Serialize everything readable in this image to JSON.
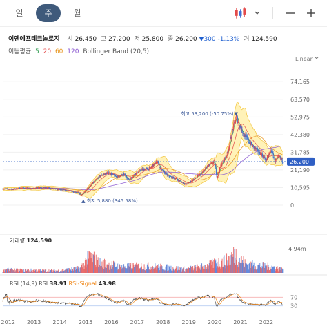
{
  "toolbar": {
    "tabs": [
      {
        "label": "일",
        "active": false
      },
      {
        "label": "주",
        "active": true
      },
      {
        "label": "월",
        "active": false
      }
    ],
    "icons": [
      "candlestick-icon",
      "chevron-down-icon",
      "minus-icon",
      "plus-icon"
    ]
  },
  "header": {
    "stock_name": "이엔에프테크놀로지",
    "open_label": "시",
    "open": "26,450",
    "high_label": "고",
    "high": "27,200",
    "low_label": "저",
    "low": "25,800",
    "close_label": "종",
    "close": "26,200",
    "change": "▼300",
    "change_pct": "-1.13%",
    "volume_label": "거",
    "volume": "124,590"
  },
  "indicators": {
    "ma_label": "이동평균",
    "ma_periods": [
      "5",
      "20",
      "60",
      "120"
    ],
    "bollinger_label": "Bollinger Band (20,5)",
    "scale": "Linear"
  },
  "colors": {
    "up": "#e34a4a",
    "down": "#3d6fd6",
    "ma5": "#2e9c4f",
    "ma20": "#e34a4a",
    "ma60": "#e7941b",
    "ma120": "#8a57d0",
    "band_fill": "#fff2b8",
    "band_line": "#f2c43c",
    "current_price_tag": "#2f5fc4",
    "rsi": "#3a3a3a",
    "rsi_signal": "#f08a1e"
  },
  "chart_data": [
    {
      "type": "candlestick",
      "title": "이엔에프테크놀로지",
      "ylim": [
        0,
        78000
      ],
      "y_ticks": [
        "74,165",
        "63,570",
        "52,975",
        "42,380",
        "31,785",
        "21,190",
        "10,595",
        "0"
      ],
      "y_tick_values": [
        74165,
        63570,
        52975,
        42380,
        31785,
        21190,
        10595,
        0
      ],
      "x_ticks": [
        "2012",
        "2013",
        "2014",
        "2015",
        "2016",
        "2017",
        "2018",
        "2019",
        "2020",
        "2021",
        "2022"
      ],
      "x_range": [
        2011.9,
        2022.75
      ],
      "price_path": [
        [
          2011.9,
          9800
        ],
        [
          2012.3,
          9500
        ],
        [
          2012.6,
          10500
        ],
        [
          2013.0,
          9900
        ],
        [
          2013.3,
          10800
        ],
        [
          2013.7,
          10200
        ],
        [
          2014.1,
          9300
        ],
        [
          2014.5,
          8500
        ],
        [
          2014.8,
          7600
        ],
        [
          2014.95,
          5880
        ],
        [
          2015.15,
          9500
        ],
        [
          2015.4,
          13500
        ],
        [
          2015.7,
          18000
        ],
        [
          2016.0,
          19500
        ],
        [
          2016.3,
          17000
        ],
        [
          2016.6,
          18500
        ],
        [
          2016.8,
          15000
        ],
        [
          2017.0,
          18500
        ],
        [
          2017.3,
          21500
        ],
        [
          2017.6,
          22000
        ],
        [
          2017.9,
          26500
        ],
        [
          2018.0,
          22000
        ],
        [
          2018.3,
          17500
        ],
        [
          2018.6,
          16000
        ],
        [
          2018.8,
          14000
        ],
        [
          2019.0,
          12500
        ],
        [
          2019.3,
          15500
        ],
        [
          2019.6,
          19000
        ],
        [
          2019.8,
          23000
        ],
        [
          2020.0,
          25000
        ],
        [
          2020.1,
          26000
        ],
        [
          2020.2,
          16500
        ],
        [
          2020.35,
          24000
        ],
        [
          2020.6,
          31000
        ],
        [
          2020.8,
          45000
        ],
        [
          2020.95,
          53200
        ],
        [
          2021.1,
          47000
        ],
        [
          2021.3,
          41000
        ],
        [
          2021.6,
          35000
        ],
        [
          2021.9,
          31000
        ],
        [
          2022.1,
          27000
        ],
        [
          2022.3,
          33000
        ],
        [
          2022.45,
          26500
        ],
        [
          2022.6,
          29000
        ],
        [
          2022.75,
          26200
        ]
      ],
      "current_price": 26200,
      "current_price_label": "26,200",
      "annotations": [
        {
          "text": "최고 53,200 (-50.75%)",
          "x": 2020.95,
          "y": 53200,
          "marker": "▼"
        },
        {
          "text": "▲ 최저 5,880 (345.58%)",
          "x": 2014.95,
          "y": 5880
        }
      ],
      "series": [
        "5",
        "20",
        "60",
        "120",
        "Bollinger Band (20,5)"
      ]
    },
    {
      "type": "bar",
      "title": "거래량",
      "last_value": "124,590",
      "y_tick": "4.94m",
      "ylim": [
        0,
        4940000
      ],
      "x_range": [
        2011.9,
        2022.75
      ],
      "level_path": [
        [
          2011.9,
          0.14
        ],
        [
          2013.0,
          0.12
        ],
        [
          2014.0,
          0.1
        ],
        [
          2014.9,
          0.2
        ],
        [
          2015.3,
          0.75
        ],
        [
          2015.6,
          0.45
        ],
        [
          2016.5,
          0.28
        ],
        [
          2017.5,
          0.3
        ],
        [
          2018.0,
          0.26
        ],
        [
          2019.0,
          0.18
        ],
        [
          2019.8,
          0.3
        ],
        [
          2020.2,
          0.45
        ],
        [
          2020.6,
          0.55
        ],
        [
          2020.9,
          0.85
        ],
        [
          2021.3,
          0.4
        ],
        [
          2021.8,
          0.32
        ],
        [
          2022.3,
          0.28
        ],
        [
          2022.75,
          0.15
        ]
      ]
    },
    {
      "type": "line",
      "title": "RSI (14,9)",
      "rsi_label": "RSI",
      "rsi_value": "38.91",
      "signal_label": "RSI-Signal",
      "signal_value": "43.98",
      "ylim": [
        0,
        100
      ],
      "y_ticks": [
        "70",
        "30"
      ],
      "y_tick_values": [
        70,
        30
      ],
      "x_range": [
        2011.9,
        2022.75
      ]
    }
  ]
}
